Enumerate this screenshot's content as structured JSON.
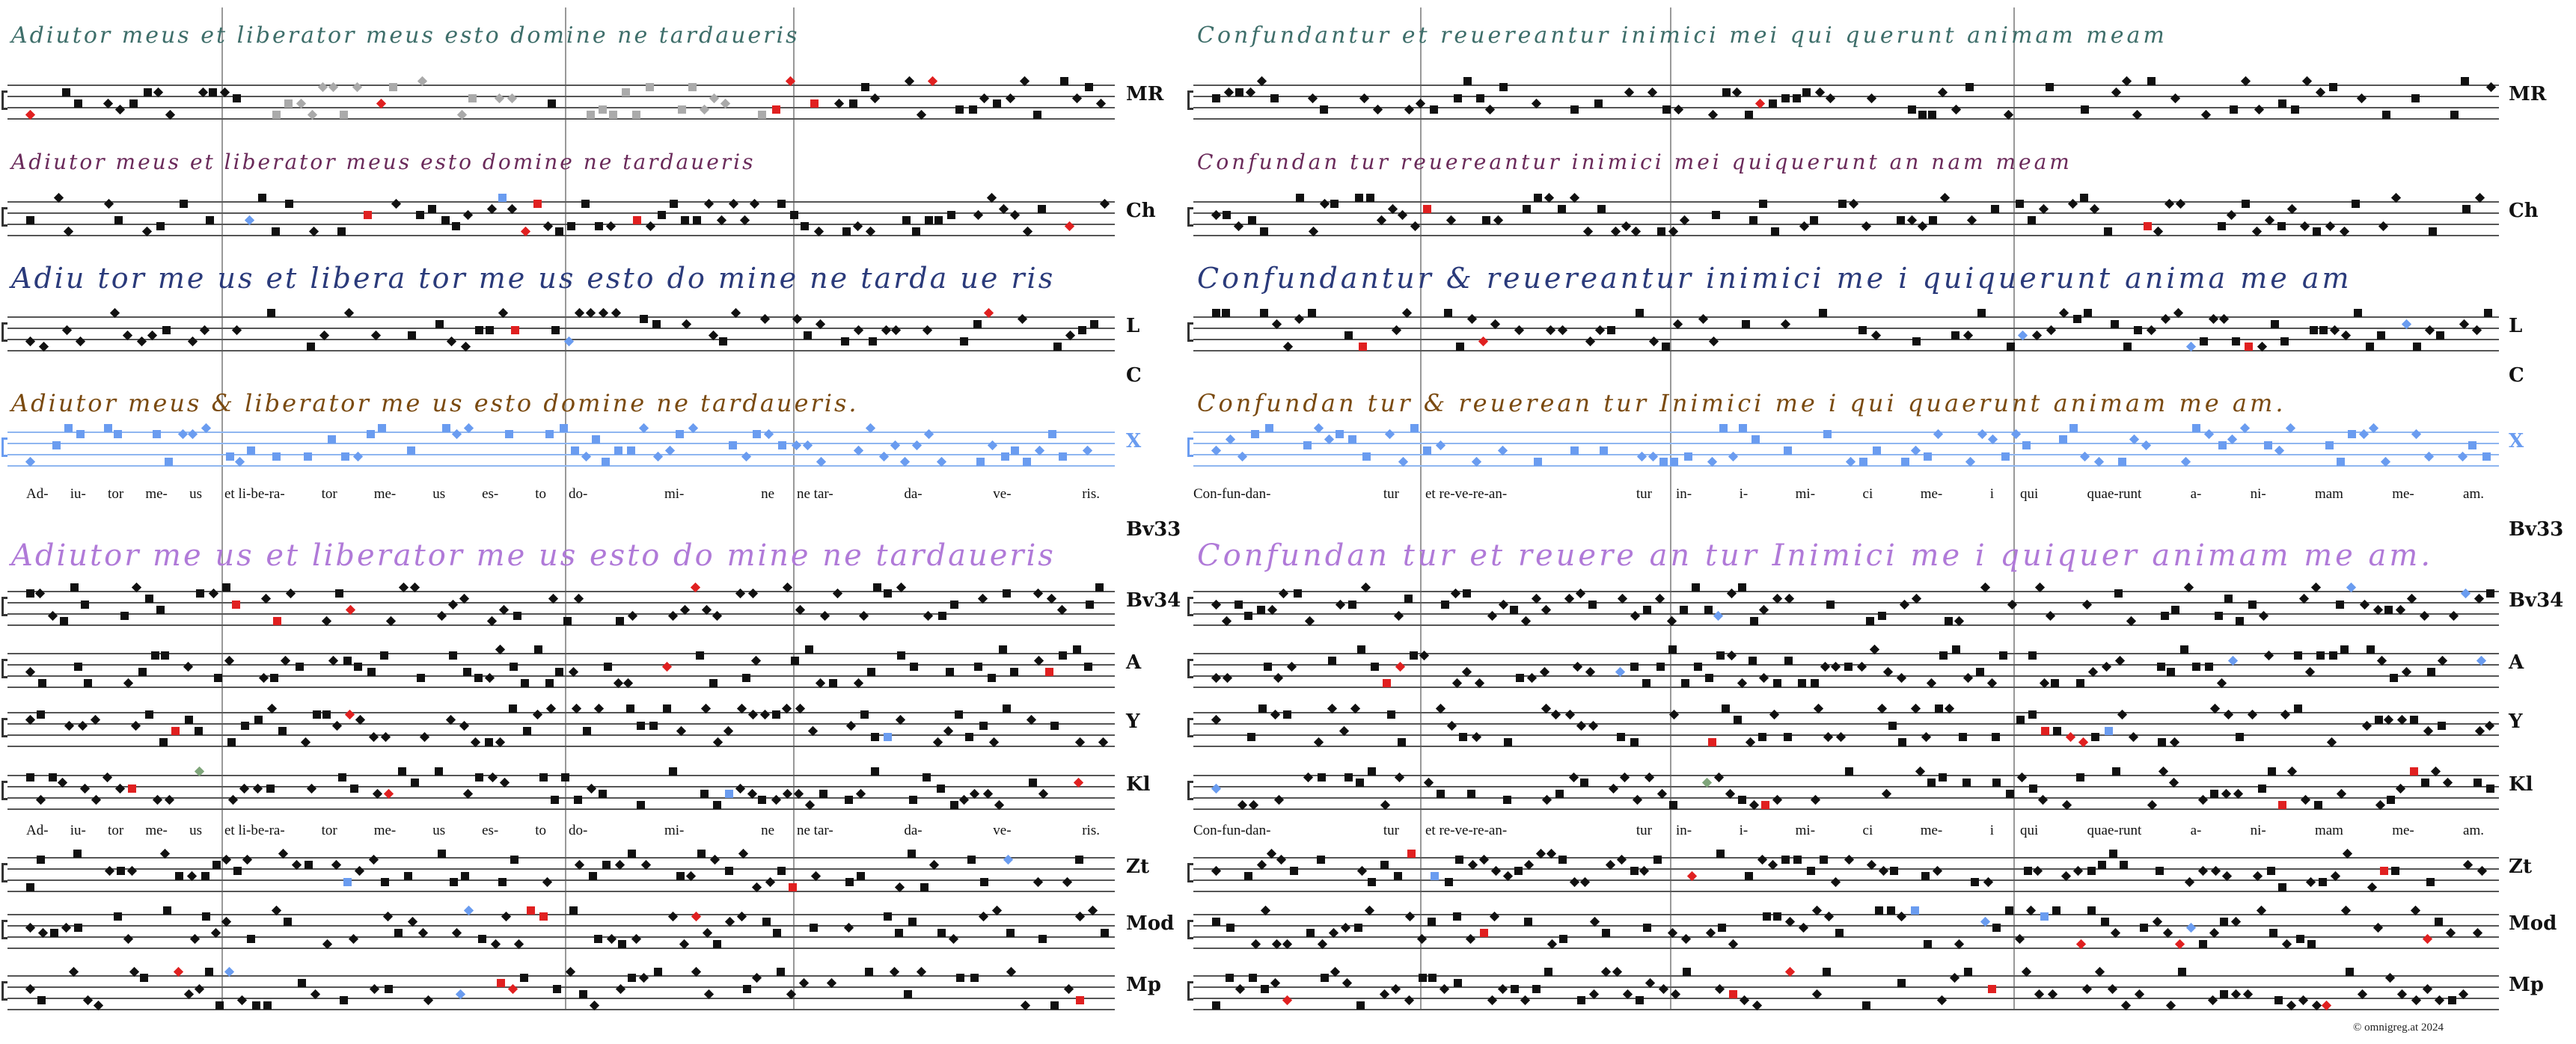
{
  "row_labels": [
    "MR",
    "Ch",
    "L",
    "C",
    "X",
    "Bv33",
    "Bv34",
    "A",
    "Y",
    "Kl",
    "Zt",
    "Mod",
    "Mp"
  ],
  "panels": [
    {
      "lyrics": [
        [
          "Ad-",
          "iu-",
          "tor",
          "me-",
          "us"
        ],
        [
          "et li-be-ra-",
          "tor",
          "me-",
          "us",
          "es-",
          "to"
        ],
        [
          "do-",
          "mi-",
          "ne"
        ],
        [
          "ne tar-",
          "da-",
          "ve-",
          "ris."
        ]
      ],
      "manuscripts": {
        "MR": "Adiutor  meus et liberator meus esto   domine   ne tardaueris",
        "Ch": "Adiutor meus et liberator meus   esto  domine   ne tardaueris",
        "L": "Adiu tor  me us et libera tor me us   esto  do mine   ne tarda ue ris",
        "C": "Adiutor  meus & liberator me us   esto   domine   ne tardaueris.",
        "Bv33": "Adiutor  me us et liberator me us  esto do mine   ne tardaueris"
      }
    },
    {
      "lyrics": [
        [
          "Con-fun-dan-",
          "tur"
        ],
        [
          "et re-ve-re-an-",
          "tur"
        ],
        [
          "in-",
          "i-",
          "mi-",
          "ci",
          "me-",
          "i"
        ],
        [
          "qui",
          "quae-runt",
          "a-",
          "ni-",
          "mam",
          "me-",
          "am."
        ]
      ],
      "manuscripts": {
        "MR": "Confundantur   et reuereantur   inimici mei   qui querunt animam meam",
        "Ch": "Confundan tur   reuereantur   inimici mei   quiquerunt an nam meam",
        "L": "Confundantur   & reuereantur   inimici me i   quiquerunt anima  me  am",
        "C": "Confundan  tur   & reuerean   tur  Inimici me   i   qui quaerunt animam me   am.",
        "Bv33": "Confundan  tur   et reuere an  tur Inimici me   i   quiquer   animam me   am."
      }
    }
  ],
  "copyright": "© omnigreg.at    2024",
  "colors": {
    "staff": "#555555",
    "neume": "#111111",
    "variant_red": "#e02020",
    "variant_blue": "#6a9cf0",
    "variant_green": "#7fa57a",
    "ms_teal": "#3e6e6a",
    "ms_purple": "#6a2a5a",
    "ms_blue": "#2a3a7a",
    "ms_brown": "#7a4a10",
    "ms_lilac": "#b07ad8",
    "x_staff": "#8fb6f0"
  }
}
